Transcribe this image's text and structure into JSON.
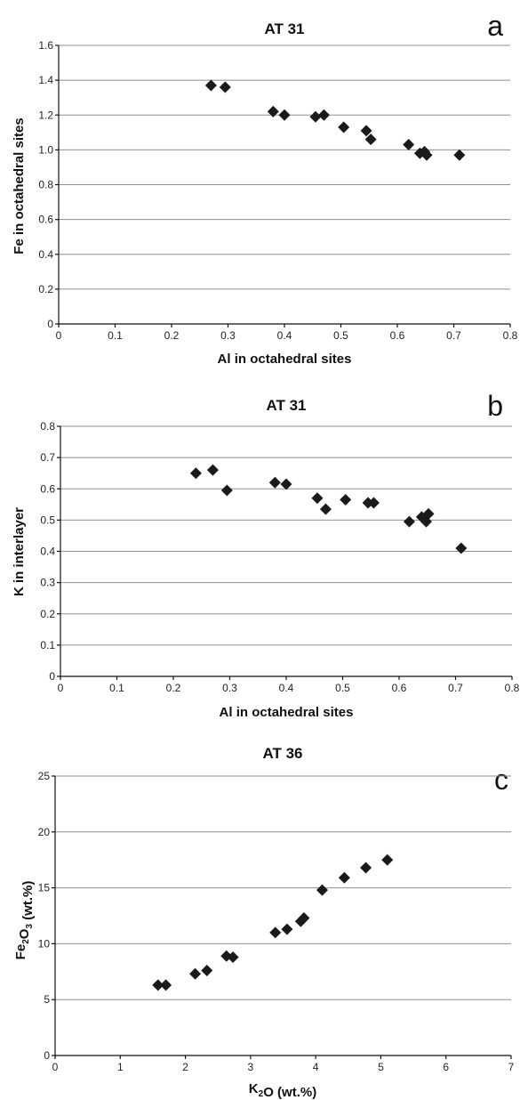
{
  "chart_data": [
    {
      "type": "scatter",
      "title": "AT 31",
      "panel_label": "a",
      "xlabel": "Al in octahedral sites",
      "ylabel": "Fe in octahedral sites",
      "xlim": [
        0,
        0.8
      ],
      "ylim": [
        0,
        1.6
      ],
      "xticks": [
        "0",
        "0.1",
        "0.2",
        "0.3",
        "0.4",
        "0.5",
        "0.6",
        "0.7",
        "0.8"
      ],
      "yticks": [
        "0",
        "0.2",
        "0.4",
        "0.6",
        "0.8",
        "1.0",
        "1.2",
        "1.4",
        "1.6"
      ],
      "grid": "horizontal",
      "marker": "diamond",
      "x": [
        0.27,
        0.295,
        0.38,
        0.4,
        0.455,
        0.47,
        0.505,
        0.545,
        0.553,
        0.62,
        0.64,
        0.648,
        0.652,
        0.71
      ],
      "y": [
        1.37,
        1.36,
        1.22,
        1.2,
        1.19,
        1.2,
        1.13,
        1.11,
        1.06,
        1.03,
        0.98,
        0.99,
        0.97,
        0.97
      ]
    },
    {
      "type": "scatter",
      "title": "AT 31",
      "panel_label": "b",
      "xlabel": "Al in octahedral sites",
      "ylabel": "K in interlayer",
      "xlim": [
        0,
        0.8
      ],
      "ylim": [
        0,
        0.8
      ],
      "xticks": [
        "0",
        "0.1",
        "0.2",
        "0.3",
        "0.4",
        "0.5",
        "0.6",
        "0.7",
        "0.8"
      ],
      "yticks": [
        "0",
        "0.1",
        "0.2",
        "0.3",
        "0.4",
        "0.5",
        "0.6",
        "0.7",
        "0.8"
      ],
      "grid": "horizontal",
      "marker": "diamond",
      "x": [
        0.24,
        0.27,
        0.295,
        0.38,
        0.4,
        0.455,
        0.47,
        0.505,
        0.545,
        0.555,
        0.618,
        0.64,
        0.648,
        0.652,
        0.71
      ],
      "y": [
        0.65,
        0.66,
        0.595,
        0.62,
        0.615,
        0.57,
        0.535,
        0.565,
        0.555,
        0.555,
        0.495,
        0.51,
        0.495,
        0.52,
        0.41
      ]
    },
    {
      "type": "scatter",
      "title": "AT 36",
      "panel_label": "c",
      "xlabel": "K₂O (wt.%)",
      "ylabel": "Fe₂O₃ (wt.%)",
      "xlim": [
        0,
        7
      ],
      "ylim": [
        0,
        25
      ],
      "xticks": [
        "0",
        "1",
        "2",
        "3",
        "4",
        "5",
        "6",
        "7"
      ],
      "yticks": [
        "0",
        "5",
        "10",
        "15",
        "20",
        "25"
      ],
      "grid": "horizontal",
      "marker": "diamond",
      "x": [
        1.58,
        1.7,
        2.15,
        2.33,
        2.63,
        2.73,
        3.38,
        3.56,
        3.77,
        3.82,
        4.1,
        4.44,
        4.77,
        5.1
      ],
      "y": [
        6.3,
        6.3,
        7.3,
        7.6,
        8.9,
        8.8,
        11.0,
        11.3,
        12.0,
        12.3,
        14.8,
        15.9,
        16.8,
        17.5
      ]
    }
  ]
}
